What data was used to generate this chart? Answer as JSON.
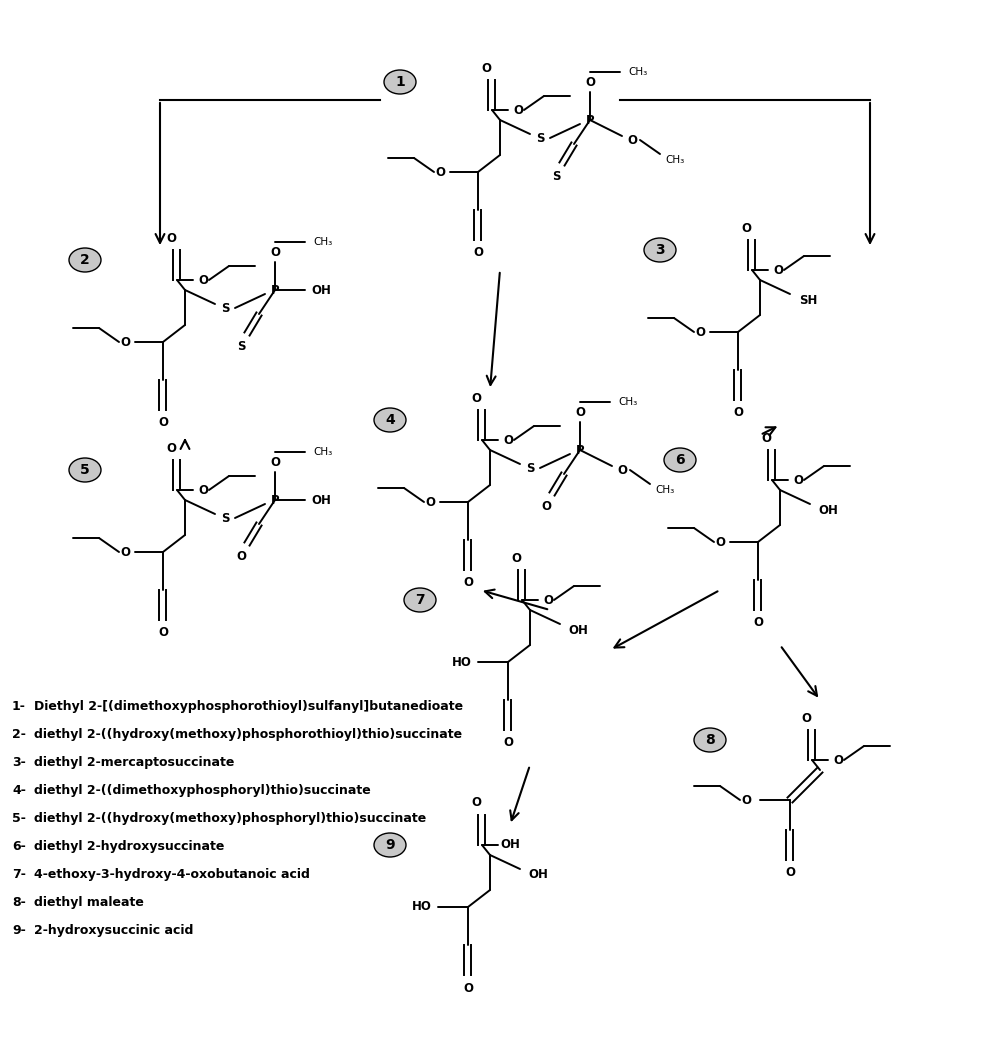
{
  "background_color": "#ffffff",
  "legend": [
    [
      "1",
      "Diethyl 2-[(dimethoxyphosphorothioyl)sulfanyl]butanedioate"
    ],
    [
      "2",
      "diethyl 2-((hydroxy(methoxy)phosphorothioyl)thio)succinate"
    ],
    [
      "3",
      "diethyl 2-mercaptosuccinate"
    ],
    [
      "4",
      "diethyl 2-((dimethoxyphosphoryl)thio)succinate"
    ],
    [
      "5",
      "diethyl 2-((hydroxy(methoxy)phosphoryl)thio)succinate"
    ],
    [
      "6",
      "diethyl 2-hydroxysuccinate"
    ],
    [
      "7",
      "4-ethoxy-3-hydroxy-4-oxobutanoic acid"
    ],
    [
      "8",
      "diethyl maleate"
    ],
    [
      "9",
      "2-hydroxysuccinic acid"
    ]
  ],
  "fig_w": 10.04,
  "fig_h": 10.42,
  "dpi": 100
}
